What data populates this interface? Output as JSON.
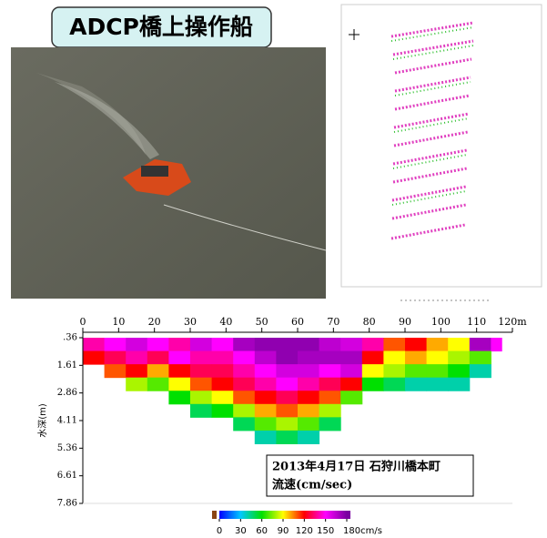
{
  "title": "ADCP橋上操作船",
  "chart_data": {
    "type": "heatmap",
    "ylabel": "水深(m)",
    "annotations": [
      "2013年4月17日 石狩川橋本町",
      "流速(cm/sec)"
    ],
    "xlim": [
      0,
      120
    ],
    "xticks": [
      0,
      10,
      20,
      30,
      40,
      50,
      60,
      70,
      80,
      90,
      100,
      110,
      {
        "value": 120,
        "label": "120m"
      }
    ],
    "ylim": [
      0.36,
      7.86
    ],
    "yticks": [
      {
        "value": 0.36,
        "label": ".36"
      },
      {
        "value": 1.61,
        "label": "1.61"
      },
      {
        "value": 2.86,
        "label": "2.86"
      },
      {
        "value": 4.11,
        "label": "4.11"
      },
      {
        "value": 5.36,
        "label": "5.36"
      },
      {
        "value": 6.61,
        "label": "6.61"
      },
      {
        "value": 7.86,
        "label": "7.86"
      }
    ],
    "x": [
      0,
      6,
      12,
      18,
      24,
      30,
      36,
      42,
      48,
      54,
      60,
      66,
      72,
      78,
      84,
      90,
      96,
      102,
      108,
      114,
      117
    ],
    "y": [
      0.36,
      0.96,
      1.56,
      2.16,
      2.76,
      3.36,
      3.96,
      4.56,
      5.16
    ],
    "values": [
      [
        140,
        150,
        160,
        150,
        140,
        160,
        150,
        170,
        175,
        175,
        175,
        165,
        160,
        140,
        110,
        120,
        100,
        90,
        170,
        150
      ],
      [
        120,
        130,
        140,
        130,
        150,
        140,
        140,
        150,
        165,
        175,
        170,
        170,
        170,
        120,
        90,
        100,
        90,
        80,
        70,
        null
      ],
      [
        null,
        110,
        120,
        100,
        120,
        130,
        130,
        140,
        150,
        160,
        160,
        150,
        160,
        90,
        80,
        70,
        70,
        60,
        40,
        null
      ],
      [
        null,
        null,
        80,
        70,
        90,
        110,
        120,
        130,
        140,
        150,
        140,
        130,
        120,
        60,
        50,
        40,
        40,
        40,
        null,
        null
      ],
      [
        null,
        null,
        null,
        null,
        60,
        80,
        90,
        110,
        120,
        130,
        120,
        110,
        70,
        null,
        null,
        null,
        null,
        null,
        null,
        null
      ],
      [
        null,
        null,
        null,
        null,
        null,
        50,
        60,
        80,
        100,
        110,
        100,
        80,
        null,
        null,
        null,
        null,
        null,
        null,
        null,
        null
      ],
      [
        null,
        null,
        null,
        null,
        null,
        null,
        null,
        50,
        70,
        80,
        70,
        50,
        null,
        null,
        null,
        null,
        null,
        null,
        null,
        null
      ],
      [
        null,
        null,
        null,
        null,
        null,
        null,
        null,
        null,
        40,
        50,
        40,
        null,
        null,
        null,
        null,
        null,
        null,
        null,
        null,
        null
      ]
    ],
    "clim": [
      0,
      180
    ],
    "colors": [
      "#0000ff",
      "#00c8ff",
      "#00e000",
      "#ffff00",
      "#ff0000",
      "#ff00ff",
      "#7a00a0"
    ],
    "cticks": [
      0,
      30,
      60,
      90,
      120,
      150,
      {
        "value": 180,
        "label": "180cm/s"
      }
    ]
  }
}
